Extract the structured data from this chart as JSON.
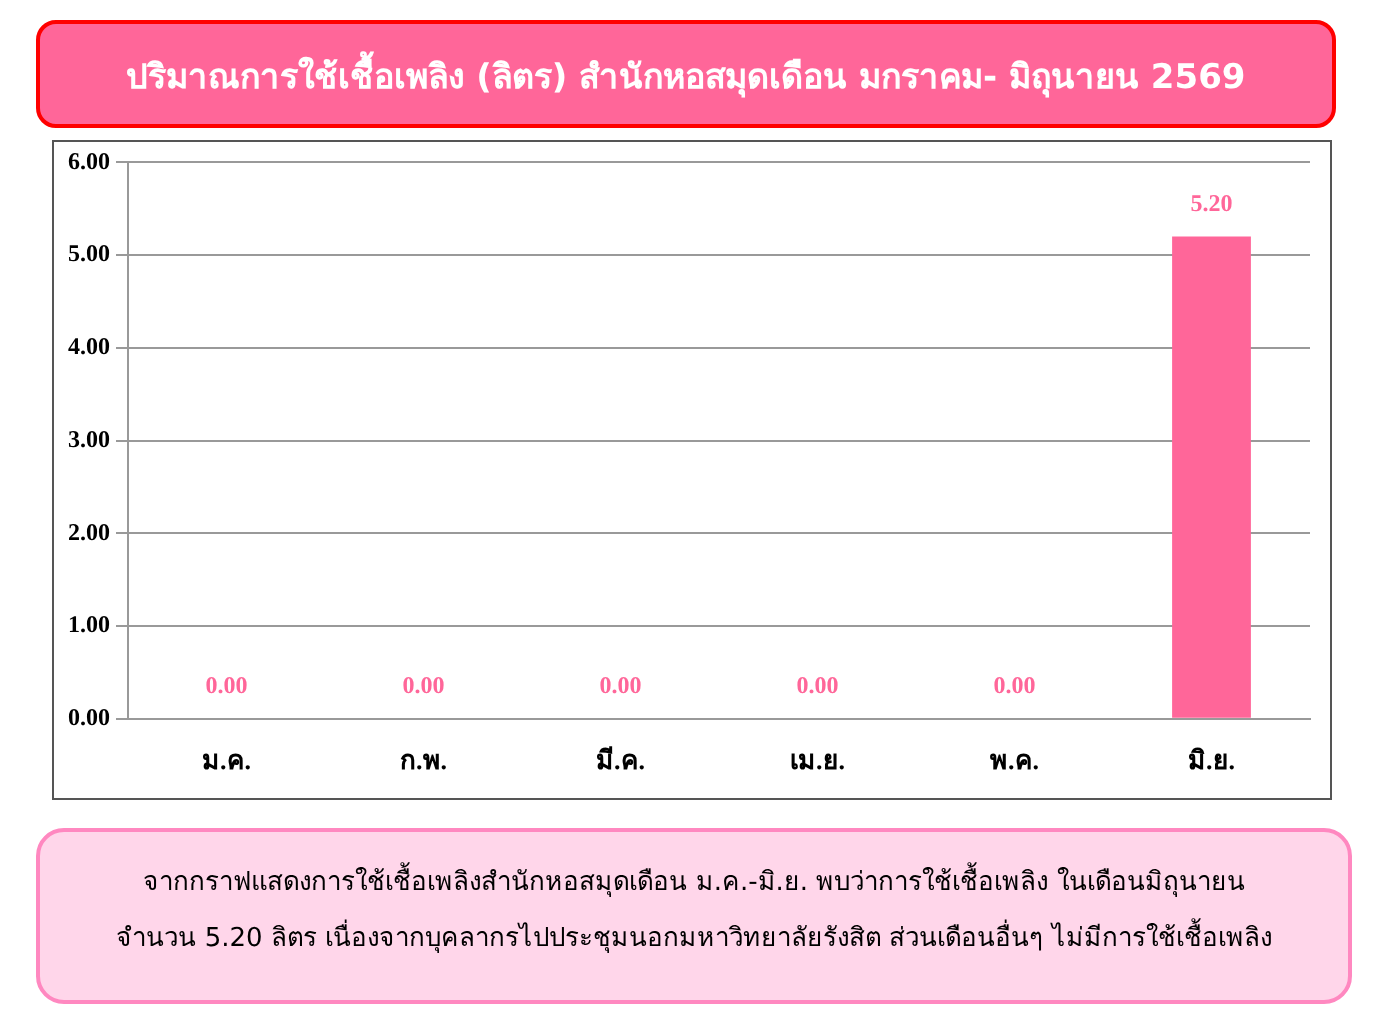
{
  "chart_data": {
    "type": "bar",
    "title": "ปริมาณการใช้เชื้อเพลิง (ลิตร) สำนักหอสมุดเดือน มกราคม- มิถุนายน 2569",
    "categories": [
      "ม.ค.",
      "ก.พ.",
      "มี.ค.",
      "เม.ย.",
      "พ.ค.",
      "มิ.ย."
    ],
    "values": [
      0,
      0,
      0,
      0,
      0,
      5.2
    ],
    "value_labels": [
      "0.00",
      "0.00",
      "0.00",
      "0.00",
      "0.00",
      "5.20"
    ],
    "color": "#ff6699",
    "ylim": [
      0,
      6
    ],
    "yticks": [
      {
        "value": 0,
        "label": "0.00"
      },
      {
        "value": 1,
        "label": "1.00"
      },
      {
        "value": 2,
        "label": "2.00"
      },
      {
        "value": 3,
        "label": "3.00"
      },
      {
        "value": 4,
        "label": "4.00"
      },
      {
        "value": 5,
        "label": "5.00"
      },
      {
        "value": 6,
        "label": "6.00"
      }
    ],
    "grid": "y",
    "legend": false,
    "annotations": [
      "จากกราฟแสดงการใช้เชื้อเพลิงสำนักหอสมุดเดือน ม.ค.-มิ.ย. พบว่าการใช้เชื้อเพลิง ในเดือนมิถุนายน จำนวน 5.20 ลิตร เนื่องจากบุคลากรไปประชุมนอกมหาวิทยาลัยรังสิต ส่วนเดือนอื่นๆ ไม่มีการใช้เชื้อเพลิง"
    ]
  }
}
